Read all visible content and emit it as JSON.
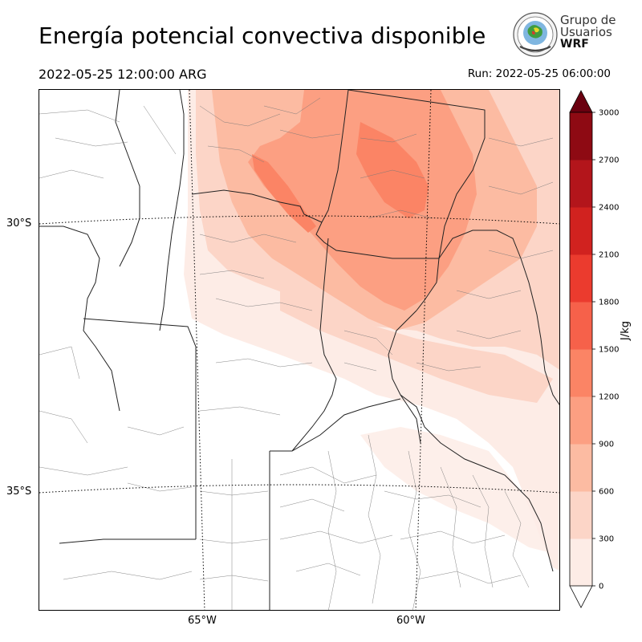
{
  "title": "Energía potencial convectiva disponible",
  "valid_time": "2022-05-25 12:00:00 ARG",
  "run_time": "Run: 2022-05-25 06:00:00",
  "logo": {
    "line1": "Grupo de",
    "line2": "Usuarios",
    "line3": "WRF",
    "icon": "globe-seal-icon"
  },
  "map": {
    "lat_labels": [
      "30°S",
      "35°S"
    ],
    "lon_labels": [
      "65°W",
      "60°W"
    ]
  },
  "colorbar": {
    "unit": "J/kg",
    "ticks": [
      "0",
      "300",
      "600",
      "900",
      "1200",
      "1500",
      "1800",
      "2100",
      "2400",
      "2700",
      "3000"
    ],
    "colors": [
      "#fdece6",
      "#fcd5c7",
      "#fcbba2",
      "#fc9f82",
      "#fb8465",
      "#f6614a",
      "#eb3b2e",
      "#d1221f",
      "#b3151b",
      "#8e0a13",
      "#6a0010"
    ],
    "extend": "both"
  }
}
